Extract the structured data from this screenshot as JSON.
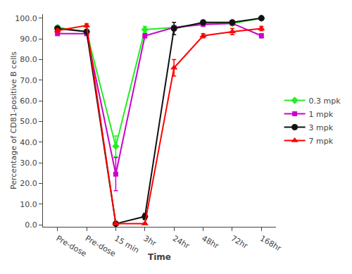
{
  "chart_data": {
    "type": "line",
    "xlabel": "Time",
    "ylabel": "Percentage of CD81-positive B cells",
    "categories": [
      "Pre-dose",
      "Pre-dose",
      "15 min",
      "3hr",
      "24hr",
      "48hr",
      "72hr",
      "168hr"
    ],
    "series": [
      {
        "name": "0.3 mpk",
        "color": "#22ee22",
        "marker": "diamond",
        "values": [
          95.5,
          93.5,
          38.0,
          94.5,
          95.5,
          97.5,
          97.5,
          100.0
        ],
        "yerr": [
          1.0,
          1.0,
          5.0,
          1.5,
          1.0,
          0.5,
          0.5,
          0.5
        ]
      },
      {
        "name": "1 mpk",
        "color": "#cc00cc",
        "marker": "square",
        "values": [
          92.5,
          92.5,
          24.5,
          91.5,
          95.5,
          97.0,
          97.5,
          91.5
        ],
        "yerr": [
          0.5,
          0.5,
          8.0,
          1.0,
          0.5,
          0.5,
          0.5,
          1.0
        ]
      },
      {
        "name": "3 mpk",
        "color": "#111111",
        "marker": "circle",
        "values": [
          95.0,
          93.5,
          0.5,
          4.0,
          95.0,
          98.0,
          98.0,
          100.0
        ],
        "yerr": [
          0.8,
          0.5,
          0.3,
          1.5,
          3.0,
          0.5,
          0.5,
          0.3
        ]
      },
      {
        "name": "7 mpk",
        "color": "#ff0000",
        "marker": "triangle-up",
        "values": [
          94.0,
          96.5,
          0.5,
          0.5,
          76.0,
          91.5,
          93.5,
          95.0
        ],
        "yerr": [
          0.8,
          0.8,
          0.3,
          0.3,
          4.0,
          1.0,
          1.5,
          1.0
        ]
      }
    ],
    "ylim": [
      -1.0,
      102.0
    ],
    "yticks": [
      {
        "value": 0,
        "label": "0.0"
      },
      {
        "value": 10,
        "label": "10.0"
      },
      {
        "value": 20,
        "label": "20.0"
      },
      {
        "value": 30,
        "label": "30.0"
      },
      {
        "value": 40,
        "label": "40.0"
      },
      {
        "value": 50,
        "label": "50.0"
      },
      {
        "value": 60,
        "label": "60.0"
      },
      {
        "value": 70,
        "label": "70.0"
      },
      {
        "value": 80,
        "label": "80.0"
      },
      {
        "value": 90,
        "label": "90.0"
      },
      {
        "value": 100,
        "label": "100.0"
      }
    ],
    "grid": false,
    "legend": "right"
  }
}
